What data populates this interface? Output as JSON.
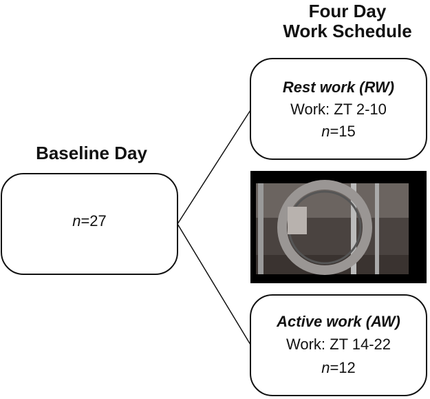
{
  "header": {
    "title_line1": "Four Day",
    "title_line2": "Work Schedule"
  },
  "baseline": {
    "title": "Baseline Day",
    "n_symbol": "n",
    "n_value": "=27"
  },
  "groups": [
    {
      "name": "Rest work (RW)",
      "schedule": "Work: ZT 2-10",
      "n_symbol": "n",
      "n_value": "=15"
    },
    {
      "name": "Active work (AW)",
      "schedule": "Work: ZT 14-22",
      "n_symbol": "n",
      "n_value": "=12"
    }
  ]
}
